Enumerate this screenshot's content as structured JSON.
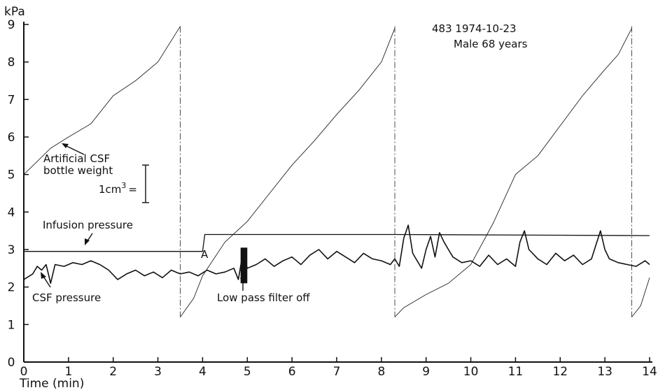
{
  "chart_data": {
    "type": "line",
    "header": {
      "line1": "483  1974-10-23",
      "line2": "Male 68 years"
    },
    "ylabel": "kPa",
    "xlabel": "Time  (min)",
    "xlim": [
      0,
      14
    ],
    "ylim": [
      0,
      9
    ],
    "x_ticks": [
      "0",
      "1",
      "2",
      "3",
      "4",
      "5",
      "6",
      "7",
      "8",
      "9",
      "10",
      "11",
      "12",
      "13",
      "14"
    ],
    "y_ticks": [
      "0",
      "1",
      "2",
      "3",
      "4",
      "5",
      "6",
      "7",
      "8",
      "9"
    ],
    "grid": false,
    "annotations": {
      "bottle_label_line1": "Artificial CSF",
      "bottle_label_line2": "bottle weight",
      "scale_label": "1cm",
      "scale_sup": "3",
      "scale_eq": "=",
      "scale_size_kpa": 1.0,
      "infusion_label": "Infusion pressure",
      "csf_label": "CSF pressure",
      "filter_label": "Low pass filter off",
      "marker_label": "A"
    },
    "series": [
      {
        "name": "Artificial CSF bottle weight",
        "style": "thin",
        "segments": [
          [
            [
              0.0,
              5.0
            ],
            [
              0.3,
              5.35
            ],
            [
              0.6,
              5.7
            ],
            [
              1.0,
              6.0
            ],
            [
              1.5,
              6.35
            ],
            [
              2.0,
              7.1
            ],
            [
              2.5,
              7.5
            ],
            [
              3.0,
              8.0
            ],
            [
              3.5,
              8.95
            ]
          ],
          [
            [
              3.5,
              1.2
            ],
            [
              3.8,
              1.7
            ],
            [
              4.0,
              2.3
            ],
            [
              4.5,
              3.2
            ],
            [
              5.0,
              3.75
            ],
            [
              5.5,
              4.5
            ],
            [
              6.0,
              5.25
            ],
            [
              6.5,
              5.9
            ],
            [
              7.0,
              6.6
            ],
            [
              7.5,
              7.25
            ],
            [
              8.0,
              8.0
            ],
            [
              8.3,
              8.9
            ]
          ],
          [
            [
              8.3,
              1.2
            ],
            [
              8.5,
              1.45
            ],
            [
              9.0,
              1.8
            ],
            [
              9.5,
              2.1
            ],
            [
              10.0,
              2.6
            ],
            [
              10.5,
              3.7
            ],
            [
              11.0,
              5.0
            ],
            [
              11.5,
              5.5
            ],
            [
              12.0,
              6.3
            ],
            [
              12.5,
              7.1
            ],
            [
              13.0,
              7.8
            ],
            [
              13.3,
              8.2
            ],
            [
              13.6,
              8.9
            ]
          ],
          [
            [
              13.6,
              1.2
            ],
            [
              13.8,
              1.5
            ],
            [
              14.0,
              2.25
            ]
          ]
        ],
        "resets": [
          3.5,
          8.3,
          13.6
        ]
      },
      {
        "name": "Infusion pressure",
        "style": "mid",
        "segments": [
          [
            [
              0.0,
              2.95
            ],
            [
              3.5,
              2.95
            ],
            [
              4.0,
              2.95
            ],
            [
              4.05,
              3.4
            ],
            [
              8.3,
              3.4
            ],
            [
              14.0,
              3.37
            ]
          ]
        ]
      },
      {
        "name": "CSF pressure",
        "style": "csf",
        "x": [
          0.0,
          0.2,
          0.3,
          0.4,
          0.5,
          0.6,
          0.7,
          0.9,
          1.1,
          1.3,
          1.5,
          1.7,
          1.9,
          2.1,
          2.3,
          2.5,
          2.7,
          2.9,
          3.1,
          3.3,
          3.5,
          3.7,
          3.9,
          4.1,
          4.3,
          4.5,
          4.7,
          4.8,
          4.9,
          5.0,
          5.2,
          5.4,
          5.6,
          5.8,
          6.0,
          6.2,
          6.4,
          6.6,
          6.8,
          7.0,
          7.2,
          7.4,
          7.6,
          7.8,
          8.0,
          8.2,
          8.3,
          8.4,
          8.5,
          8.6,
          8.7,
          8.8,
          8.9,
          9.0,
          9.1,
          9.2,
          9.3,
          9.4,
          9.5,
          9.6,
          9.8,
          10.0,
          10.2,
          10.4,
          10.6,
          10.8,
          11.0,
          11.1,
          11.2,
          11.3,
          11.5,
          11.7,
          11.9,
          12.1,
          12.3,
          12.5,
          12.7,
          12.9,
          13.0,
          13.1,
          13.3,
          13.5,
          13.7,
          13.9,
          14.0
        ],
        "y": [
          2.2,
          2.35,
          2.55,
          2.45,
          2.6,
          2.1,
          2.6,
          2.55,
          2.65,
          2.6,
          2.7,
          2.6,
          2.45,
          2.2,
          2.35,
          2.45,
          2.3,
          2.4,
          2.25,
          2.45,
          2.35,
          2.4,
          2.3,
          2.45,
          2.35,
          2.4,
          2.5,
          2.2,
          2.9,
          2.5,
          2.6,
          2.75,
          2.55,
          2.7,
          2.8,
          2.6,
          2.85,
          3.0,
          2.75,
          2.95,
          2.8,
          2.65,
          2.9,
          2.75,
          2.7,
          2.6,
          2.75,
          2.55,
          3.3,
          3.65,
          2.9,
          2.7,
          2.5,
          3.0,
          3.35,
          2.8,
          3.45,
          3.2,
          3.0,
          2.8,
          2.65,
          2.7,
          2.55,
          2.85,
          2.6,
          2.75,
          2.55,
          3.2,
          3.5,
          3.0,
          2.75,
          2.6,
          2.9,
          2.7,
          2.85,
          2.6,
          2.75,
          3.5,
          3.0,
          2.75,
          2.65,
          2.6,
          2.55,
          2.7,
          2.6
        ],
        "filter_off_x": [
          4.85,
          5.0
        ]
      }
    ]
  }
}
